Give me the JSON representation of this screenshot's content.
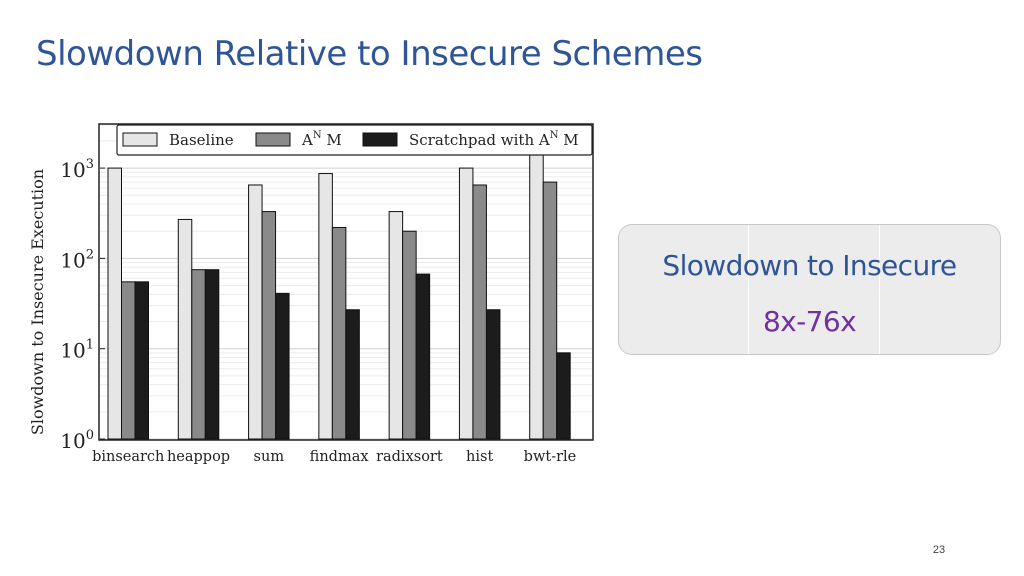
{
  "slide": {
    "title": "Slowdown Relative to Insecure Schemes",
    "page_number": "23"
  },
  "callout": {
    "line1": "Slowdown to Insecure",
    "line2": "8x-76x",
    "line1_color": "#2f5597",
    "line2_color": "#7030a0"
  },
  "chart_data": {
    "type": "bar",
    "title": "",
    "xlabel": "",
    "ylabel": "Slowdown to Insecure Execution",
    "yscale": "log",
    "ylim": [
      1,
      3000
    ],
    "yticks": [
      {
        "value": 1,
        "base": "10",
        "exp": "0"
      },
      {
        "value": 10,
        "base": "10",
        "exp": "1"
      },
      {
        "value": 100,
        "base": "10",
        "exp": "2"
      },
      {
        "value": 1000,
        "base": "10",
        "exp": "3"
      }
    ],
    "grid": true,
    "legend_position": "top",
    "categories": [
      "binsearch",
      "heappop",
      "sum",
      "findmax",
      "radixsort",
      "hist",
      "bwt-rle"
    ],
    "series": [
      {
        "name": "Baseline",
        "color": "#e6e6e6",
        "values": [
          1000,
          270,
          650,
          870,
          330,
          1000,
          2100
        ]
      },
      {
        "name": "A^N M",
        "legend_base": "A",
        "legend_sup": "N",
        "legend_tail": " M",
        "color": "#8a8a8a",
        "values": [
          55,
          75,
          330,
          220,
          200,
          650,
          700
        ]
      },
      {
        "name": "Scratchpad with A^N M",
        "legend_base": "Scratchpad with A",
        "legend_sup": "N",
        "legend_tail": " M",
        "color": "#1c1c1c",
        "values": [
          55,
          75,
          41,
          27,
          67,
          27,
          9
        ]
      }
    ]
  }
}
